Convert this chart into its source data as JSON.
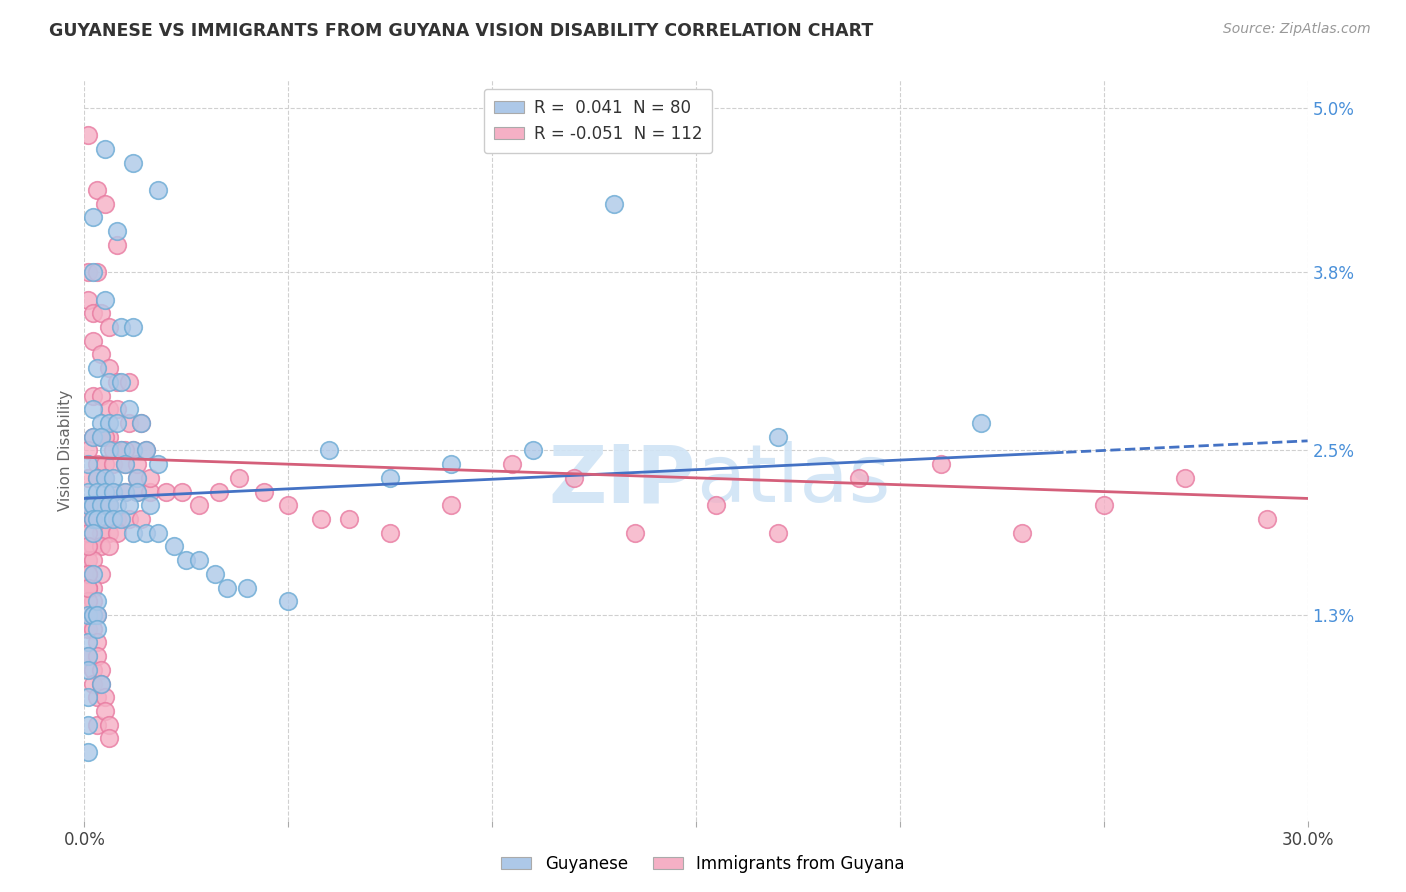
{
  "title": "GUYANESE VS IMMIGRANTS FROM GUYANA VISION DISABILITY CORRELATION CHART",
  "source": "Source: ZipAtlas.com",
  "ylabel": "Vision Disability",
  "xlim": [
    0.0,
    0.3
  ],
  "ylim": [
    -0.002,
    0.052
  ],
  "xticks": [
    0.0,
    0.05,
    0.1,
    0.15,
    0.2,
    0.25,
    0.3
  ],
  "ytick_positions": [
    0.013,
    0.025,
    0.038,
    0.05
  ],
  "ytick_labels": [
    "1.3%",
    "2.5%",
    "3.8%",
    "5.0%"
  ],
  "legend_label1": "Guyanese",
  "legend_label2": "Immigrants from Guyana",
  "r1": 0.041,
  "n1": 80,
  "r2": -0.051,
  "n2": 112,
  "color_blue": "#adc8e8",
  "color_pink": "#f5b0c5",
  "color_blue_edge": "#6aaad4",
  "color_pink_edge": "#e87aa0",
  "trend_blue": "#4472c4",
  "trend_pink": "#d45f7a",
  "watermark_color": "#d0e4f5",
  "blue_x": [
    0.005,
    0.012,
    0.018,
    0.002,
    0.008,
    0.002,
    0.005,
    0.009,
    0.012,
    0.003,
    0.006,
    0.009,
    0.002,
    0.004,
    0.006,
    0.008,
    0.011,
    0.014,
    0.002,
    0.004,
    0.006,
    0.009,
    0.012,
    0.015,
    0.018,
    0.001,
    0.003,
    0.005,
    0.007,
    0.01,
    0.013,
    0.001,
    0.003,
    0.005,
    0.007,
    0.01,
    0.013,
    0.016,
    0.001,
    0.002,
    0.004,
    0.006,
    0.008,
    0.011,
    0.002,
    0.003,
    0.005,
    0.007,
    0.009,
    0.012,
    0.015,
    0.018,
    0.022,
    0.025,
    0.028,
    0.032,
    0.035,
    0.04,
    0.05,
    0.06,
    0.075,
    0.09,
    0.11,
    0.13,
    0.17,
    0.22,
    0.001,
    0.001,
    0.001,
    0.001,
    0.002,
    0.002,
    0.003,
    0.003,
    0.001,
    0.001,
    0.001,
    0.002,
    0.003,
    0.004
  ],
  "blue_y": [
    0.047,
    0.046,
    0.044,
    0.042,
    0.041,
    0.038,
    0.036,
    0.034,
    0.034,
    0.031,
    0.03,
    0.03,
    0.028,
    0.027,
    0.027,
    0.027,
    0.028,
    0.027,
    0.026,
    0.026,
    0.025,
    0.025,
    0.025,
    0.025,
    0.024,
    0.024,
    0.023,
    0.023,
    0.023,
    0.024,
    0.023,
    0.022,
    0.022,
    0.022,
    0.022,
    0.022,
    0.022,
    0.021,
    0.021,
    0.021,
    0.021,
    0.021,
    0.021,
    0.021,
    0.02,
    0.02,
    0.02,
    0.02,
    0.02,
    0.019,
    0.019,
    0.019,
    0.018,
    0.017,
    0.017,
    0.016,
    0.015,
    0.015,
    0.014,
    0.025,
    0.023,
    0.024,
    0.025,
    0.043,
    0.026,
    0.027,
    0.013,
    0.011,
    0.01,
    0.009,
    0.016,
    0.013,
    0.014,
    0.013,
    0.007,
    0.005,
    0.003,
    0.019,
    0.012,
    0.008
  ],
  "pink_x": [
    0.001,
    0.003,
    0.005,
    0.008,
    0.001,
    0.003,
    0.001,
    0.002,
    0.004,
    0.006,
    0.002,
    0.004,
    0.006,
    0.008,
    0.011,
    0.002,
    0.004,
    0.006,
    0.008,
    0.011,
    0.014,
    0.002,
    0.004,
    0.006,
    0.009,
    0.012,
    0.015,
    0.001,
    0.003,
    0.005,
    0.007,
    0.01,
    0.013,
    0.001,
    0.003,
    0.005,
    0.007,
    0.01,
    0.013,
    0.016,
    0.001,
    0.002,
    0.004,
    0.006,
    0.008,
    0.011,
    0.014,
    0.001,
    0.002,
    0.004,
    0.006,
    0.008,
    0.001,
    0.002,
    0.004,
    0.006,
    0.001,
    0.002,
    0.004,
    0.001,
    0.002,
    0.001,
    0.002,
    0.003,
    0.005,
    0.007,
    0.01,
    0.013,
    0.016,
    0.02,
    0.024,
    0.028,
    0.033,
    0.038,
    0.044,
    0.05,
    0.058,
    0.065,
    0.075,
    0.09,
    0.105,
    0.12,
    0.135,
    0.155,
    0.17,
    0.19,
    0.21,
    0.23,
    0.25,
    0.27,
    0.29,
    0.001,
    0.001,
    0.001,
    0.002,
    0.002,
    0.003,
    0.003,
    0.001,
    0.001,
    0.001,
    0.001,
    0.002,
    0.002,
    0.003,
    0.003,
    0.004,
    0.004,
    0.005,
    0.005,
    0.006,
    0.006
  ],
  "pink_y": [
    0.048,
    0.044,
    0.043,
    0.04,
    0.038,
    0.038,
    0.036,
    0.035,
    0.035,
    0.034,
    0.033,
    0.032,
    0.031,
    0.03,
    0.03,
    0.029,
    0.029,
    0.028,
    0.028,
    0.027,
    0.027,
    0.026,
    0.026,
    0.026,
    0.025,
    0.025,
    0.025,
    0.025,
    0.024,
    0.024,
    0.024,
    0.024,
    0.023,
    0.023,
    0.023,
    0.023,
    0.022,
    0.022,
    0.022,
    0.022,
    0.021,
    0.021,
    0.021,
    0.021,
    0.02,
    0.02,
    0.02,
    0.02,
    0.02,
    0.019,
    0.019,
    0.019,
    0.018,
    0.018,
    0.018,
    0.018,
    0.017,
    0.017,
    0.016,
    0.016,
    0.015,
    0.015,
    0.014,
    0.013,
    0.026,
    0.025,
    0.025,
    0.024,
    0.023,
    0.022,
    0.022,
    0.021,
    0.022,
    0.023,
    0.022,
    0.021,
    0.02,
    0.02,
    0.019,
    0.021,
    0.024,
    0.023,
    0.019,
    0.021,
    0.019,
    0.023,
    0.024,
    0.019,
    0.021,
    0.023,
    0.02,
    0.014,
    0.012,
    0.01,
    0.009,
    0.008,
    0.007,
    0.005,
    0.019,
    0.018,
    0.016,
    0.015,
    0.013,
    0.012,
    0.011,
    0.01,
    0.009,
    0.008,
    0.007,
    0.006,
    0.005,
    0.004
  ]
}
